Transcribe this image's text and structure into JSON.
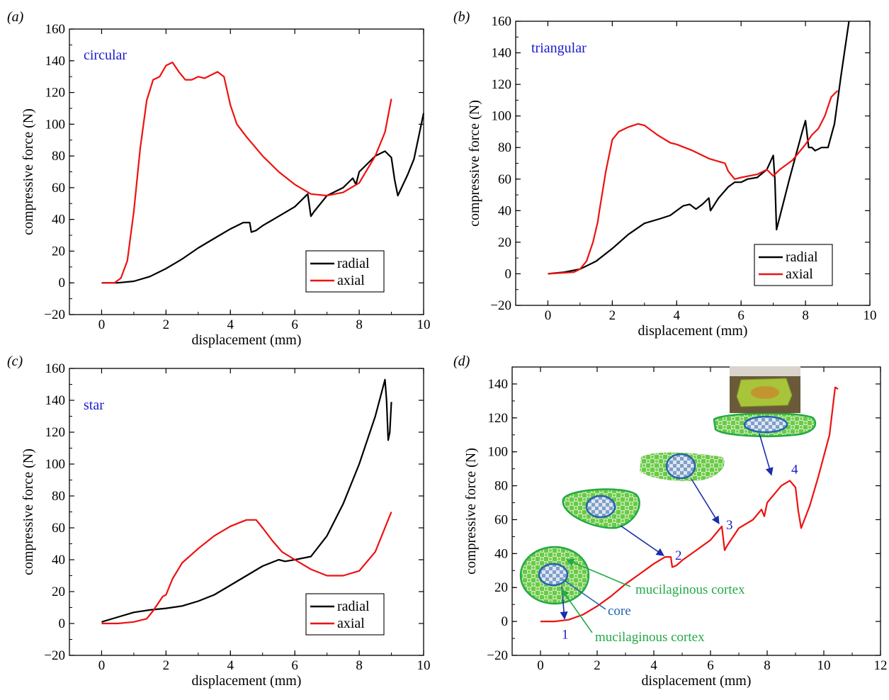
{
  "colors": {
    "radial": "#000000",
    "axial": "#ee1111",
    "title": "#1a1acc",
    "green": "#22aa44",
    "blue": "#2266aa",
    "numberblue": "#1a1acc"
  },
  "panel_labels": [
    "(a)",
    "(b)",
    "(c)",
    "(d)"
  ],
  "chart_data": [
    {
      "type": "line",
      "panel": "(a)",
      "title": "circular",
      "xlabel": "displacement (mm)",
      "ylabel": "compressive force (N)",
      "xlim": [
        -1,
        10
      ],
      "ylim": [
        -20,
        160
      ],
      "xticks": [
        0,
        2,
        4,
        6,
        8,
        10
      ],
      "yticks": [
        -20,
        0,
        20,
        40,
        60,
        80,
        100,
        120,
        140,
        160
      ],
      "legend": {
        "placement": "bottom-right",
        "entries": [
          "radial",
          "axial"
        ]
      },
      "series": [
        {
          "name": "radial",
          "x": [
            0,
            0.5,
            1,
            1.5,
            2,
            2.5,
            3,
            3.5,
            4,
            4.4,
            4.6,
            4.65,
            4.8,
            5,
            5.5,
            6,
            6.4,
            6.5,
            6.6,
            7,
            7.5,
            7.8,
            7.9,
            8,
            8.5,
            8.8,
            9,
            9.1,
            9.2,
            9.5,
            9.7,
            10
          ],
          "y": [
            0,
            0,
            1,
            4,
            9,
            15,
            22,
            28,
            34,
            38,
            38,
            32,
            33,
            36,
            42,
            48,
            56,
            42,
            45,
            55,
            60,
            66,
            62,
            70,
            80,
            83,
            79,
            65,
            55,
            68,
            78,
            107
          ]
        },
        {
          "name": "axial",
          "x": [
            0,
            0.4,
            0.6,
            0.8,
            1,
            1.2,
            1.4,
            1.6,
            1.8,
            2,
            2.2,
            2.4,
            2.6,
            2.8,
            3,
            3.2,
            3.4,
            3.6,
            3.8,
            4,
            4.2,
            4.5,
            5,
            5.5,
            6,
            6.5,
            7,
            7.5,
            8,
            8.5,
            8.8,
            9
          ],
          "y": [
            0,
            0,
            3,
            14,
            45,
            85,
            115,
            128,
            130,
            137,
            139,
            133,
            128,
            128,
            130,
            129,
            131,
            133,
            130,
            112,
            100,
            92,
            80,
            70,
            62,
            56,
            55,
            57,
            63,
            80,
            95,
            116
          ]
        }
      ]
    },
    {
      "type": "line",
      "panel": "(b)",
      "title": "triangular",
      "xlabel": "displacement (mm)",
      "ylabel": "compressive force (N)",
      "xlim": [
        -1,
        10
      ],
      "ylim": [
        -20,
        160
      ],
      "xticks": [
        0,
        2,
        4,
        6,
        8,
        10
      ],
      "yticks": [
        -20,
        0,
        20,
        40,
        60,
        80,
        100,
        120,
        140,
        160
      ],
      "legend": {
        "placement": "bottom-right",
        "entries": [
          "radial",
          "axial"
        ]
      },
      "series": [
        {
          "name": "radial",
          "x": [
            0,
            0.5,
            1,
            1.5,
            2,
            2.5,
            3,
            3.5,
            3.8,
            4,
            4.2,
            4.4,
            4.6,
            4.8,
            5,
            5.05,
            5.3,
            5.6,
            5.8,
            6,
            6.2,
            6.5,
            6.8,
            7,
            7.05,
            7.1,
            7.5,
            7.9,
            8,
            8.1,
            8.2,
            8.3,
            8.5,
            8.7,
            8.9,
            9.1,
            9.35
          ],
          "y": [
            0,
            1,
            3,
            8,
            16,
            25,
            32,
            35,
            37,
            40,
            43,
            44,
            41,
            44,
            48,
            40,
            48,
            55,
            58,
            58,
            60,
            61,
            66,
            75,
            60,
            28,
            60,
            90,
            97,
            80,
            80,
            78,
            80,
            80,
            95,
            125,
            160
          ]
        },
        {
          "name": "axial",
          "x": [
            0,
            0.8,
            1,
            1.2,
            1.4,
            1.55,
            1.6,
            1.8,
            2,
            2.2,
            2.5,
            2.8,
            3,
            3.4,
            3.8,
            4,
            4.5,
            5,
            5.5,
            5.6,
            5.8,
            6,
            6.5,
            6.8,
            7,
            7.2,
            7.6,
            8,
            8.2,
            8.4,
            8.6,
            8.8,
            9
          ],
          "y": [
            0,
            1,
            3,
            8,
            20,
            33,
            40,
            65,
            85,
            90,
            93,
            95,
            94,
            88,
            83,
            82,
            78,
            73,
            70,
            65,
            60,
            61,
            63,
            66,
            62,
            66,
            72,
            82,
            88,
            92,
            100,
            112,
            116
          ]
        }
      ]
    },
    {
      "type": "line",
      "panel": "(c)",
      "title": "star",
      "xlabel": "displacement (mm)",
      "ylabel": "compressive force (N)",
      "xlim": [
        -1,
        10
      ],
      "ylim": [
        -20,
        160
      ],
      "xticks": [
        0,
        2,
        4,
        6,
        8,
        10
      ],
      "yticks": [
        -20,
        0,
        20,
        40,
        60,
        80,
        100,
        120,
        140,
        160
      ],
      "legend": {
        "placement": "bottom-right",
        "entries": [
          "radial",
          "axial"
        ]
      },
      "series": [
        {
          "name": "radial",
          "x": [
            0,
            0.5,
            1,
            1.5,
            2,
            2.5,
            3,
            3.5,
            4,
            4.5,
            5,
            5.5,
            5.7,
            6,
            6.5,
            7,
            7.5,
            8,
            8.5,
            8.8,
            8.85,
            8.9,
            8.95,
            9
          ],
          "y": [
            1,
            4,
            7,
            8.5,
            9.5,
            11,
            14,
            18,
            24,
            30,
            36,
            40,
            39,
            40,
            42,
            55,
            75,
            100,
            130,
            153,
            140,
            115,
            120,
            139
          ]
        },
        {
          "name": "axial",
          "x": [
            0,
            0.5,
            1,
            1.4,
            1.6,
            1.8,
            1.9,
            2,
            2.2,
            2.5,
            3,
            3.5,
            4,
            4.5,
            4.8,
            5,
            5.3,
            5.6,
            6,
            6.5,
            7,
            7.5,
            8,
            8.5,
            9
          ],
          "y": [
            0,
            0,
            1,
            3,
            8,
            14,
            17,
            18,
            28,
            38,
            47,
            55,
            61,
            65,
            65,
            60,
            52,
            45,
            40,
            34,
            30,
            30,
            33,
            45,
            70
          ]
        }
      ]
    },
    {
      "type": "line",
      "panel": "(d)",
      "title": "",
      "xlabel": "displacement (mm)",
      "ylabel": "compressive force (N)",
      "xlim": [
        -1,
        12
      ],
      "ylim": [
        -20,
        150
      ],
      "xticks": [
        0,
        2,
        4,
        6,
        8,
        10,
        12
      ],
      "yticks": [
        -20,
        0,
        20,
        40,
        60,
        80,
        100,
        120,
        140
      ],
      "series": [
        {
          "name": "",
          "x": [
            0,
            0.5,
            1,
            1.5,
            2,
            2.5,
            3,
            3.5,
            4,
            4.4,
            4.6,
            4.65,
            4.8,
            5,
            5.5,
            6,
            6.4,
            6.5,
            6.6,
            7,
            7.5,
            7.8,
            7.9,
            8,
            8.5,
            8.8,
            9,
            9.1,
            9.2,
            9.5,
            9.8,
            10.2,
            10.4,
            10.5
          ],
          "y": [
            0,
            0,
            1,
            4,
            9,
            15,
            22,
            28,
            34,
            38,
            38,
            32,
            33,
            36,
            42,
            48,
            56,
            42,
            45,
            55,
            60,
            66,
            62,
            70,
            80,
            83,
            79,
            65,
            55,
            68,
            85,
            110,
            138,
            137
          ]
        }
      ],
      "annotations": {
        "points": [
          {
            "label": "1",
            "x": 0.9,
            "y": -1
          },
          {
            "label": "2",
            "x": 4.5,
            "y": 38
          },
          {
            "label": "3",
            "x": 6.4,
            "y": 56
          },
          {
            "label": "4",
            "x": 8.7,
            "y": 83
          }
        ],
        "labels": {
          "cortex_top": "mucilaginous cortex",
          "core": "core",
          "cortex_bottom": "mucilaginous cortex"
        }
      }
    }
  ]
}
